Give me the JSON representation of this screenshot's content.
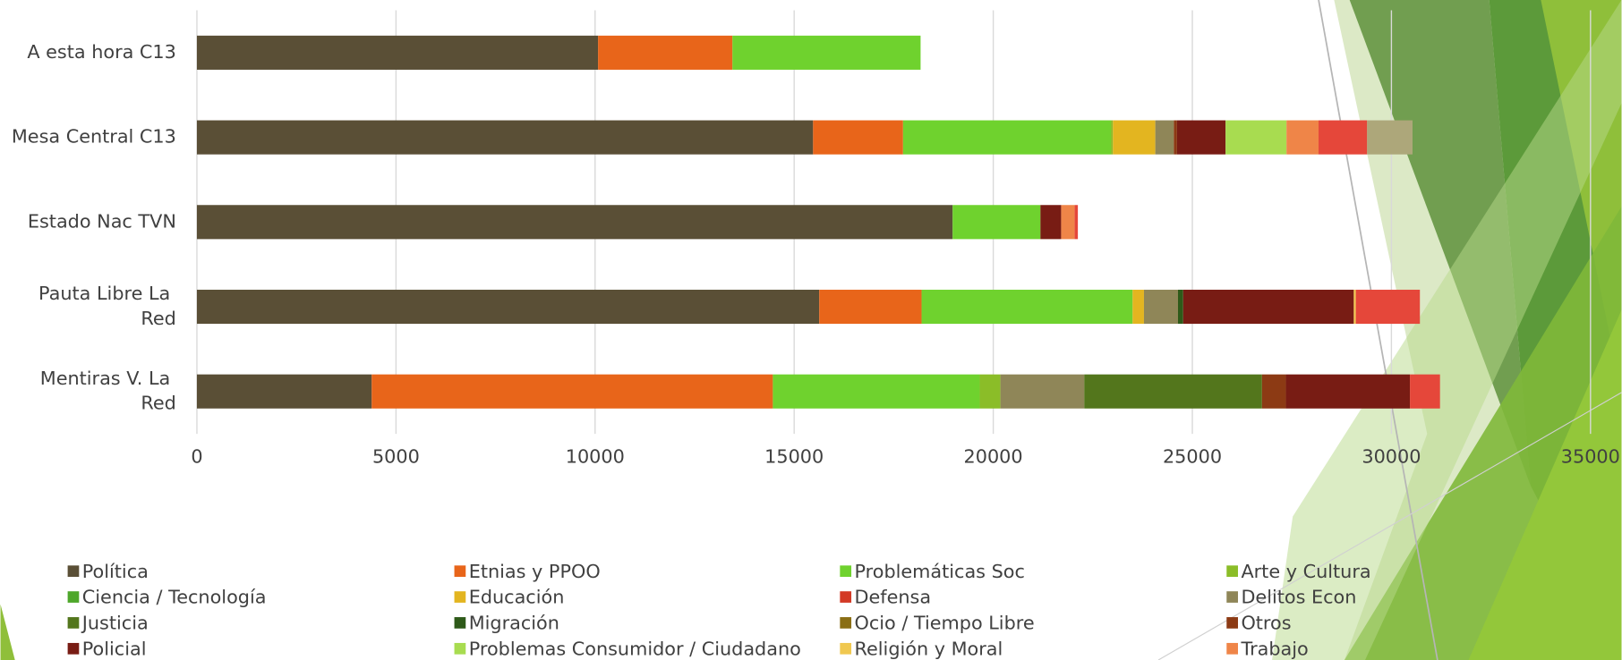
{
  "chart_data": {
    "type": "stacked-bar-horizontal",
    "categories": [
      "A esta hora C13",
      "Mesa Central C13",
      "Estado Nac TVN",
      "Pauta Libre La Red",
      "Mentiras V. La Red"
    ],
    "xlim": [
      0,
      35000
    ],
    "xticks": [
      0,
      5000,
      10000,
      15000,
      20000,
      25000,
      30000,
      35000
    ],
    "grid": true,
    "series": [
      {
        "name": "Política",
        "color": "#5a4f36",
        "values": [
          10075,
          15475,
          18980,
          15630,
          4390
        ]
      },
      {
        "name": "Etnias y PPOO",
        "color": "#e8651a",
        "values": [
          3375,
          2260,
          0,
          2570,
          10075
        ]
      },
      {
        "name": "Problemáticas Soc",
        "color": "#6fd22e",
        "values": [
          4725,
          5220,
          2205,
          5300,
          5195
        ]
      },
      {
        "name": "Arte y Cultura",
        "color": "#8bbd28",
        "values": [
          0,
          50,
          0,
          0,
          520
        ]
      },
      {
        "name": "Ciencia / Tecnología",
        "color": "#4ea72a",
        "values": [
          0,
          0,
          0,
          0,
          0
        ]
      },
      {
        "name": "Educación",
        "color": "#e3b520",
        "values": [
          0,
          1065,
          0,
          285,
          0
        ]
      },
      {
        "name": "Defensa",
        "color": "#d33a26",
        "values": [
          0,
          0,
          0,
          0,
          0
        ]
      },
      {
        "name": "Delitos Econ",
        "color": "#8f8658",
        "values": [
          0,
          465,
          0,
          855,
          2105
        ]
      },
      {
        "name": "Justicia",
        "color": "#53761c",
        "values": [
          0,
          0,
          0,
          0,
          4465
        ]
      },
      {
        "name": "Migración",
        "color": "#2e5a19",
        "values": [
          0,
          0,
          0,
          130,
          0
        ]
      },
      {
        "name": "Ocio / Tiempo Libre",
        "color": "#8a6e14",
        "values": [
          0,
          0,
          0,
          0,
          0
        ]
      },
      {
        "name": "Otros",
        "color": "#8c3a14",
        "values": [
          0,
          80,
          0,
          0,
          600
        ]
      },
      {
        "name": "Policial",
        "color": "#781c14",
        "values": [
          0,
          1220,
          520,
          4285,
          3115
        ]
      },
      {
        "name": "Problemas Consumidor / Ciudadano",
        "color": "#a8dc50",
        "values": [
          0,
          1530,
          0,
          0,
          0
        ]
      },
      {
        "name": "Religión y Moral",
        "color": "#f0c850",
        "values": [
          0,
          0,
          0,
          50,
          0
        ]
      },
      {
        "name": "Trabajo",
        "color": "#ef8548",
        "values": [
          0,
          805,
          340,
          0,
          0
        ]
      },
      {
        "name": null,
        "color": "#e5473a",
        "values": [
          0,
          1220,
          80,
          1610,
          755
        ]
      },
      {
        "name": null,
        "color": "#ada77a",
        "values": [
          0,
          1140,
          0,
          0,
          0
        ]
      }
    ]
  }
}
